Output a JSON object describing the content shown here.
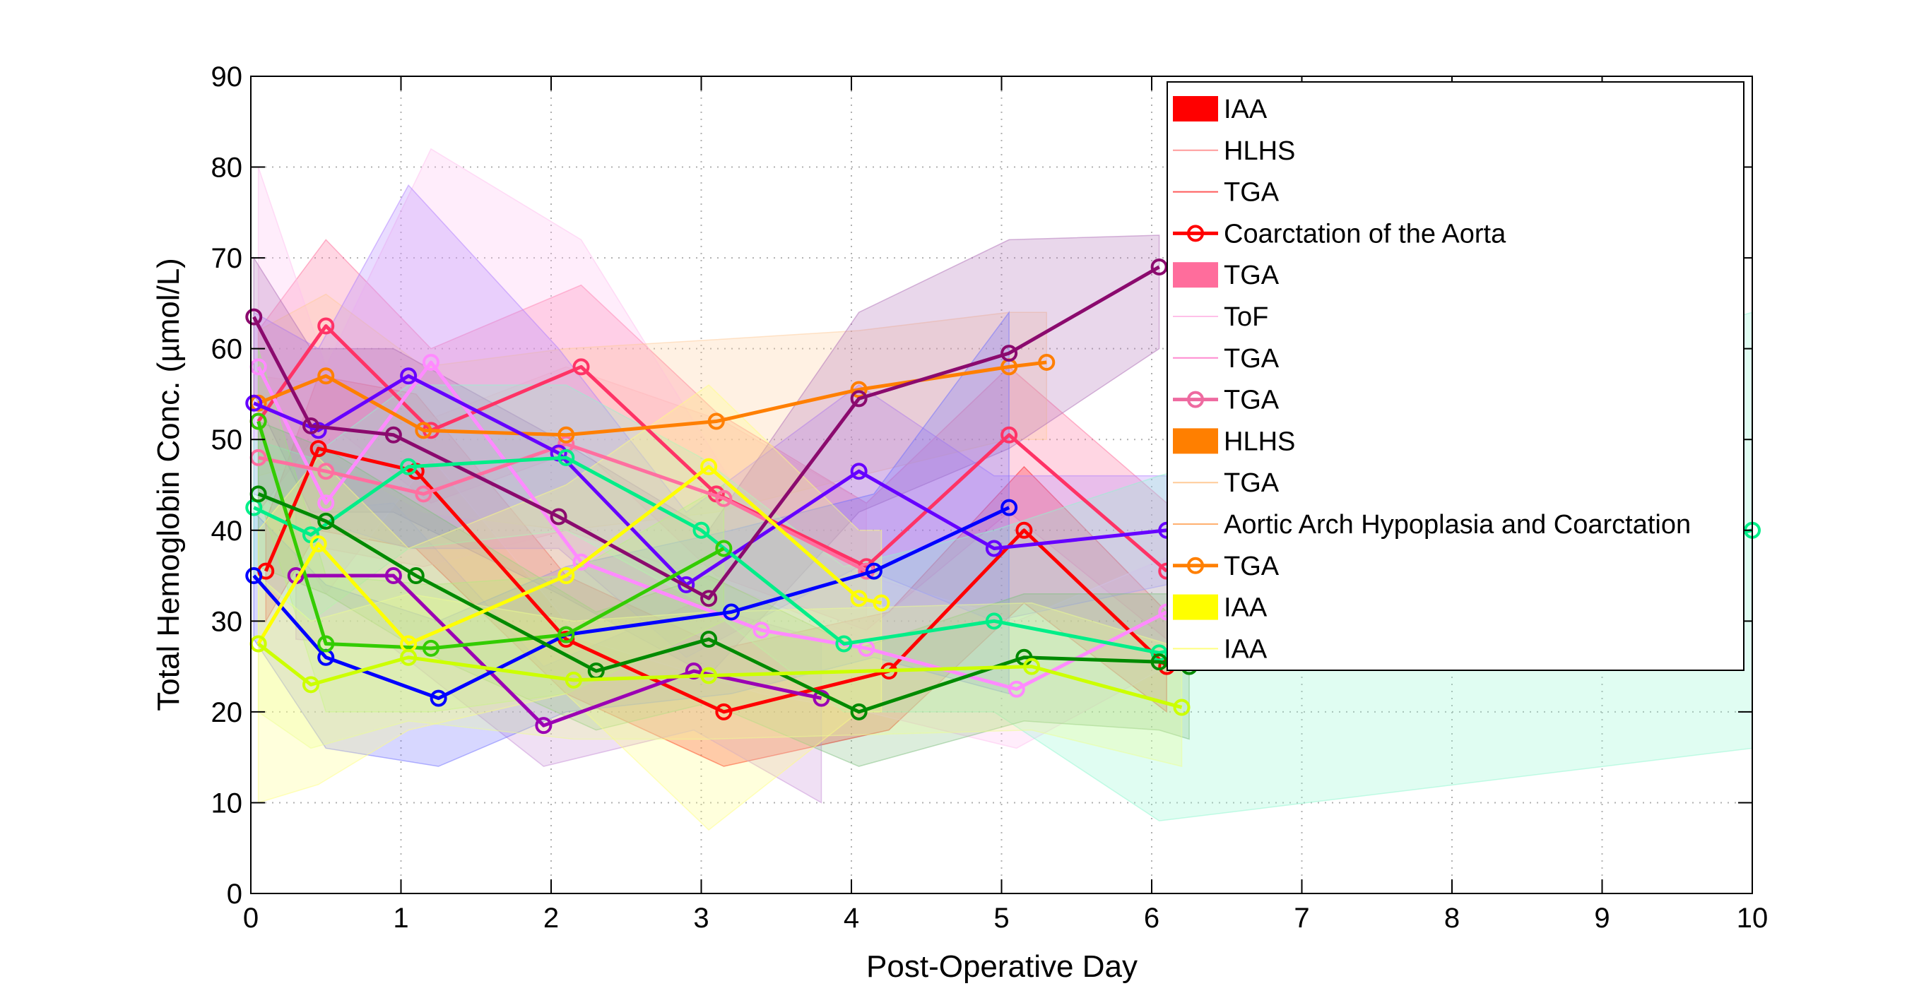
{
  "chart_data": {
    "type": "line",
    "title": "",
    "xlabel": "Post-Operative Day",
    "ylabel": "Total Hemoglobin Conc. (µmol/L)",
    "xlim": [
      0,
      10
    ],
    "ylim": [
      0,
      90
    ],
    "xticks": [
      "0",
      "1",
      "2",
      "3",
      "4",
      "5",
      "6",
      "7",
      "8",
      "9",
      "10"
    ],
    "yticks": [
      "0",
      "10",
      "20",
      "30",
      "40",
      "50",
      "60",
      "70",
      "80",
      "90"
    ],
    "grid": true,
    "legend_position": "top-right",
    "legend": [
      {
        "label": "IAA",
        "kind": "patch",
        "color": "#ff0000"
      },
      {
        "label": "HLHS",
        "kind": "thin-line",
        "color": "#ff9a9a"
      },
      {
        "label": "TGA",
        "kind": "thin-line",
        "color": "#ff5a5a"
      },
      {
        "label": "Coarctation of the Aorta",
        "kind": "line-marker",
        "color": "#ff0000"
      },
      {
        "label": "TGA",
        "kind": "patch",
        "color": "#ff6d9c"
      },
      {
        "label": "ToF",
        "kind": "thin-line",
        "color": "#ffc0e8"
      },
      {
        "label": "TGA",
        "kind": "thin-line",
        "color": "#ff8ad0"
      },
      {
        "label": "TGA",
        "kind": "line-marker",
        "color": "#ee6aa0"
      },
      {
        "label": "HLHS",
        "kind": "patch",
        "color": "#ff7f00"
      },
      {
        "label": "TGA",
        "kind": "thin-line",
        "color": "#ffcc99"
      },
      {
        "label": "Aortic Arch Hypoplasia and Coarctation",
        "kind": "thin-line",
        "color": "#ffb070"
      },
      {
        "label": "TGA",
        "kind": "line-marker",
        "color": "#ff7f00"
      },
      {
        "label": "IAA",
        "kind": "patch",
        "color": "#ffff00"
      },
      {
        "label": "IAA",
        "kind": "thin-line",
        "color": "#ffff80"
      }
    ],
    "series": [
      {
        "color": "#ff0000",
        "fill": "#ff0000",
        "x": [
          0.1,
          0.45,
          1.1,
          2.1,
          3.15,
          4.25,
          5.15,
          6.1
        ],
        "y": [
          35.5,
          49,
          46.5,
          28,
          20,
          24.5,
          40,
          25
        ],
        "lower": [
          30,
          40,
          38,
          22,
          14,
          18,
          32,
          20
        ],
        "upper": [
          41,
          57,
          55,
          35,
          27,
          31,
          47,
          31
        ]
      },
      {
        "color": "#ff3366",
        "fill": "#ff6d9c",
        "x": [
          0.05,
          0.5,
          1.2,
          2.2,
          3.1,
          4.1,
          5.05,
          6.1
        ],
        "y": [
          52,
          62.5,
          51,
          58,
          44,
          36,
          50.5,
          35.5
        ],
        "lower": [
          42,
          52,
          43,
          49,
          35,
          29,
          42,
          28
        ],
        "upper": [
          62,
          72,
          60,
          67,
          53,
          43,
          58,
          43
        ]
      },
      {
        "color": "#ff8aff",
        "fill": "#ffc0f0",
        "x": [
          0.05,
          0.5,
          1.2,
          2.2,
          3.4,
          4.1,
          5.1,
          6.1
        ],
        "y": [
          58,
          43,
          58.5,
          36.5,
          29,
          27,
          22.5,
          31
        ],
        "lower": [
          45,
          33,
          48,
          28,
          22,
          20,
          16,
          25
        ],
        "upper": [
          80,
          58,
          82,
          72,
          40,
          35,
          30,
          37
        ]
      },
      {
        "color": "#ff6fa0",
        "fill": "#ffb0c8",
        "x": [
          0.05,
          0.5,
          1.15,
          2.1,
          3.15,
          4.1
        ],
        "y": [
          48,
          46.5,
          44,
          49.5,
          43.5,
          35.5
        ],
        "lower": [
          40,
          38,
          36,
          40,
          34,
          28
        ],
        "upper": [
          57,
          56,
          52,
          58,
          52,
          43
        ]
      },
      {
        "color": "#ff7f00",
        "fill": "#ffcc99",
        "x": [
          0.05,
          0.5,
          1.15,
          2.1,
          3.1,
          4.05,
          5.05,
          5.3
        ],
        "y": [
          54,
          57,
          51,
          50.5,
          52,
          55.5,
          58,
          58.5
        ],
        "lower": [
          46,
          48,
          42,
          40,
          42,
          46,
          50,
          50
        ],
        "upper": [
          62,
          66,
          58,
          60,
          61,
          62,
          64,
          64
        ]
      },
      {
        "color": "#6600ff",
        "fill": "#b080ff",
        "x": [
          0.02,
          0.45,
          1.05,
          2.05,
          2.9,
          4.05,
          4.95,
          6.1
        ],
        "y": [
          54,
          51,
          57,
          48.5,
          34,
          46.5,
          38,
          40
        ],
        "lower": [
          44,
          41,
          38,
          38,
          26,
          36,
          30,
          34
        ],
        "upper": [
          64,
          60,
          78,
          60,
          42,
          56,
          46,
          46
        ]
      },
      {
        "color": "#8b0a6e",
        "fill": "#b070b8",
        "x": [
          0.02,
          0.4,
          0.95,
          2.05,
          3.05,
          4.05,
          5.05,
          6.05
        ],
        "y": [
          63.5,
          51.5,
          50.5,
          41.5,
          32.5,
          54.5,
          59.5,
          69
        ],
        "lower": [
          55,
          42,
          42,
          33,
          24,
          42,
          49,
          60
        ],
        "upper": [
          70,
          60,
          60,
          50,
          40,
          64,
          72,
          72.5
        ]
      },
      {
        "color": "#9b00b4",
        "fill": "#c890d8",
        "x": [
          0.3,
          0.95,
          1.95,
          2.95,
          3.8
        ],
        "y": [
          35,
          35,
          18.5,
          24.5,
          21.5
        ],
        "lower": [
          28,
          27,
          14,
          18,
          10
        ],
        "upper": [
          42,
          43,
          25,
          32,
          28
        ]
      },
      {
        "color": "#0000ff",
        "fill": "#7070ff",
        "x": [
          0.02,
          0.5,
          1.25,
          2.1,
          3.2,
          4.15,
          5.05
        ],
        "y": [
          35,
          26,
          21.5,
          28.5,
          31,
          35.5,
          42.5
        ],
        "lower": [
          28,
          16,
          14,
          20,
          22,
          26,
          22
        ],
        "upper": [
          42,
          34,
          30,
          36,
          40,
          44,
          64
        ]
      },
      {
        "color": "#00ee88",
        "fill": "#90f8d0",
        "x": [
          0.02,
          0.4,
          1.05,
          2.1,
          3.0,
          3.95,
          4.95,
          6.05,
          10.0
        ],
        "y": [
          42.5,
          39.5,
          47,
          48,
          40,
          27.5,
          30,
          26.5,
          40
        ],
        "lower": [
          35,
          30,
          38,
          40,
          32,
          20,
          20,
          8,
          16
        ],
        "upper": [
          50,
          48,
          56,
          56,
          48,
          36,
          40,
          46,
          64
        ]
      },
      {
        "color": "#33cc00",
        "fill": "#a0f080",
        "x": [
          0.05,
          0.5,
          1.2,
          2.1,
          3.15
        ],
        "y": [
          52,
          27.5,
          27,
          28.5,
          38
        ],
        "lower": [
          44,
          20,
          20,
          22,
          30
        ],
        "upper": [
          60,
          35,
          34,
          35,
          45
        ]
      },
      {
        "color": "#008a00",
        "fill": "#80c080",
        "x": [
          0.05,
          0.5,
          1.1,
          2.3,
          3.05,
          4.05,
          5.15,
          6.05,
          6.25
        ],
        "y": [
          44,
          41,
          35,
          24.5,
          28,
          20,
          26,
          25.5,
          25
        ],
        "lower": [
          36,
          33,
          27,
          18,
          21,
          14,
          19,
          18,
          17
        ],
        "upper": [
          52,
          49,
          43,
          31,
          35,
          27,
          33,
          33,
          33
        ]
      },
      {
        "color": "#ffff00",
        "fill": "#ffff80",
        "x": [
          0.05,
          0.45,
          1.05,
          2.1,
          3.05,
          4.05,
          4.2
        ],
        "y": [
          27.5,
          38.5,
          27.5,
          35,
          47,
          32.5,
          32
        ],
        "lower": [
          10,
          12,
          18,
          22,
          7,
          20,
          20
        ],
        "upper": [
          40,
          48,
          38,
          45,
          56,
          40,
          40
        ]
      },
      {
        "color": "#ccff00",
        "fill": "#eeff90",
        "x": [
          0.05,
          0.4,
          1.05,
          2.15,
          3.05,
          5.2,
          6.2
        ],
        "y": [
          27.5,
          23,
          26,
          23.5,
          24,
          25,
          20.5
        ],
        "lower": [
          20,
          16,
          19,
          17,
          17,
          18,
          14
        ],
        "upper": [
          35,
          30,
          33,
          30,
          31,
          32,
          27
        ]
      }
    ]
  }
}
